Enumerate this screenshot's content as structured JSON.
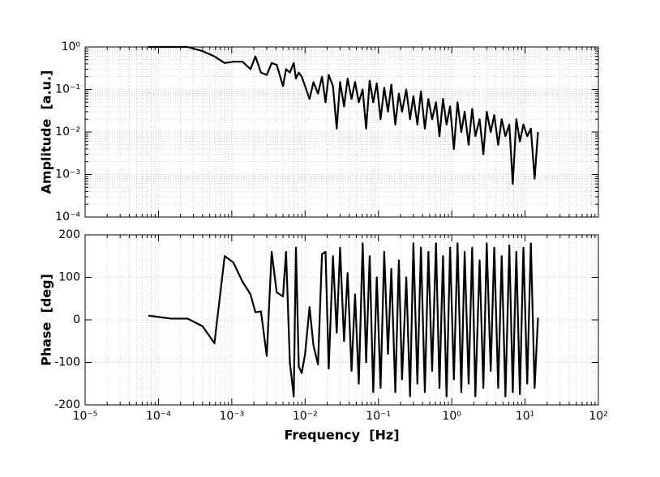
{
  "chart_data": [
    {
      "type": "line",
      "y_label": "Amplitude  [a.u.]",
      "log_x": true,
      "log_y": true,
      "grid": true,
      "color": "#000000",
      "xlim": [
        1e-05,
        100
      ],
      "xticks": [
        1e-05,
        0.0001,
        0.001,
        0.01,
        0.1,
        1,
        10,
        100
      ],
      "ylim": [
        0.0001,
        1
      ],
      "yticks": [
        {
          "value": 0.0001,
          "label": "10⁻⁴"
        },
        {
          "value": 0.001,
          "label": "10⁻³"
        },
        {
          "value": 0.01,
          "label": "10⁻²"
        },
        {
          "value": 0.1,
          "label": "10⁻¹"
        },
        {
          "value": 1,
          "label": "10⁰"
        }
      ],
      "x": [
        7.3e-05,
        0.00015,
        0.00025,
        0.0004,
        0.00058,
        0.0008,
        0.00105,
        0.0014,
        0.0018,
        0.0021,
        0.0025,
        0.003,
        0.0035,
        0.0041,
        0.005,
        0.0055,
        0.0062,
        0.007,
        0.0075,
        0.0082,
        0.009,
        0.01,
        0.0115,
        0.013,
        0.015,
        0.017,
        0.019,
        0.021,
        0.024,
        0.027,
        0.03,
        0.034,
        0.038,
        0.043,
        0.048,
        0.054,
        0.061,
        0.068,
        0.076,
        0.085,
        0.095,
        0.107,
        0.12,
        0.135,
        0.15,
        0.17,
        0.19,
        0.21,
        0.24,
        0.27,
        0.3,
        0.34,
        0.38,
        0.43,
        0.48,
        0.54,
        0.61,
        0.68,
        0.76,
        0.85,
        0.95,
        1.07,
        1.2,
        1.35,
        1.5,
        1.7,
        1.9,
        2.1,
        2.4,
        2.7,
        3,
        3.4,
        3.8,
        4.3,
        4.8,
        5.4,
        6.1,
        6.8,
        7.6,
        8.5,
        9.5,
        10.7,
        12,
        13.5,
        15
      ],
      "values": [
        1,
        1,
        1,
        0.8,
        0.6,
        0.42,
        0.45,
        0.45,
        0.3,
        0.6,
        0.25,
        0.22,
        0.42,
        0.38,
        0.12,
        0.3,
        0.25,
        0.42,
        0.18,
        0.25,
        0.2,
        0.12,
        0.06,
        0.15,
        0.08,
        0.2,
        0.05,
        0.22,
        0.12,
        0.012,
        0.15,
        0.04,
        0.18,
        0.06,
        0.15,
        0.05,
        0.1,
        0.012,
        0.16,
        0.05,
        0.14,
        0.02,
        0.11,
        0.03,
        0.13,
        0.015,
        0.08,
        0.03,
        0.1,
        0.02,
        0.07,
        0.015,
        0.09,
        0.012,
        0.06,
        0.02,
        0.05,
        0.008,
        0.06,
        0.015,
        0.04,
        0.004,
        0.05,
        0.01,
        0.03,
        0.005,
        0.035,
        0.008,
        0.02,
        0.003,
        0.03,
        0.01,
        0.025,
        0.005,
        0.02,
        0.008,
        0.015,
        0.0006,
        0.02,
        0.006,
        0.015,
        0.008,
        0.012,
        0.0008,
        0.01
      ]
    },
    {
      "type": "line",
      "x_label": "Frequency  [Hz]",
      "y_label": "Phase  [deg]",
      "log_x": true,
      "log_y": false,
      "grid": true,
      "color": "#000000",
      "xlim": [
        1e-05,
        100
      ],
      "xticks": [
        {
          "value": 1e-05,
          "label": "10⁻⁵"
        },
        {
          "value": 0.0001,
          "label": "10⁻⁴"
        },
        {
          "value": 0.001,
          "label": "10⁻³"
        },
        {
          "value": 0.01,
          "label": "10⁻²"
        },
        {
          "value": 0.1,
          "label": "10⁻¹"
        },
        {
          "value": 1,
          "label": "10⁰"
        },
        {
          "value": 10,
          "label": "10¹"
        },
        {
          "value": 100,
          "label": "10²"
        }
      ],
      "ylim": [
        -200,
        200
      ],
      "yticks": [
        -200,
        -100,
        0,
        100,
        200
      ],
      "x": [
        7.3e-05,
        0.00015,
        0.00025,
        0.0004,
        0.00058,
        0.0008,
        0.00105,
        0.0014,
        0.0018,
        0.0021,
        0.0025,
        0.003,
        0.0035,
        0.0041,
        0.005,
        0.0055,
        0.0062,
        0.007,
        0.0075,
        0.0082,
        0.009,
        0.01,
        0.0115,
        0.013,
        0.015,
        0.017,
        0.019,
        0.021,
        0.024,
        0.027,
        0.03,
        0.034,
        0.038,
        0.043,
        0.048,
        0.054,
        0.061,
        0.068,
        0.076,
        0.085,
        0.095,
        0.107,
        0.12,
        0.135,
        0.15,
        0.17,
        0.19,
        0.21,
        0.24,
        0.27,
        0.3,
        0.34,
        0.38,
        0.43,
        0.48,
        0.54,
        0.61,
        0.68,
        0.76,
        0.85,
        0.95,
        1.07,
        1.2,
        1.35,
        1.5,
        1.7,
        1.9,
        2.1,
        2.4,
        2.7,
        3,
        3.4,
        3.8,
        4.3,
        4.8,
        5.4,
        6.1,
        6.8,
        7.6,
        8.5,
        9.5,
        10.7,
        12,
        13.5,
        15
      ],
      "values": [
        10,
        3,
        3,
        -15,
        -55,
        150,
        135,
        90,
        60,
        18,
        20,
        -85,
        160,
        65,
        55,
        160,
        -100,
        -180,
        170,
        -110,
        -125,
        -80,
        30,
        -60,
        -105,
        155,
        160,
        -115,
        150,
        -30,
        170,
        -50,
        110,
        -120,
        60,
        -150,
        180,
        -100,
        150,
        -170,
        100,
        -160,
        160,
        -80,
        120,
        -170,
        140,
        -140,
        100,
        -180,
        180,
        -150,
        170,
        -170,
        160,
        -120,
        180,
        -160,
        150,
        -180,
        170,
        -140,
        180,
        -170,
        160,
        -150,
        170,
        -180,
        140,
        -160,
        180,
        -120,
        170,
        -160,
        150,
        -180,
        175,
        -170,
        160,
        -175,
        170,
        -150,
        180,
        -160,
        5
      ]
    }
  ]
}
